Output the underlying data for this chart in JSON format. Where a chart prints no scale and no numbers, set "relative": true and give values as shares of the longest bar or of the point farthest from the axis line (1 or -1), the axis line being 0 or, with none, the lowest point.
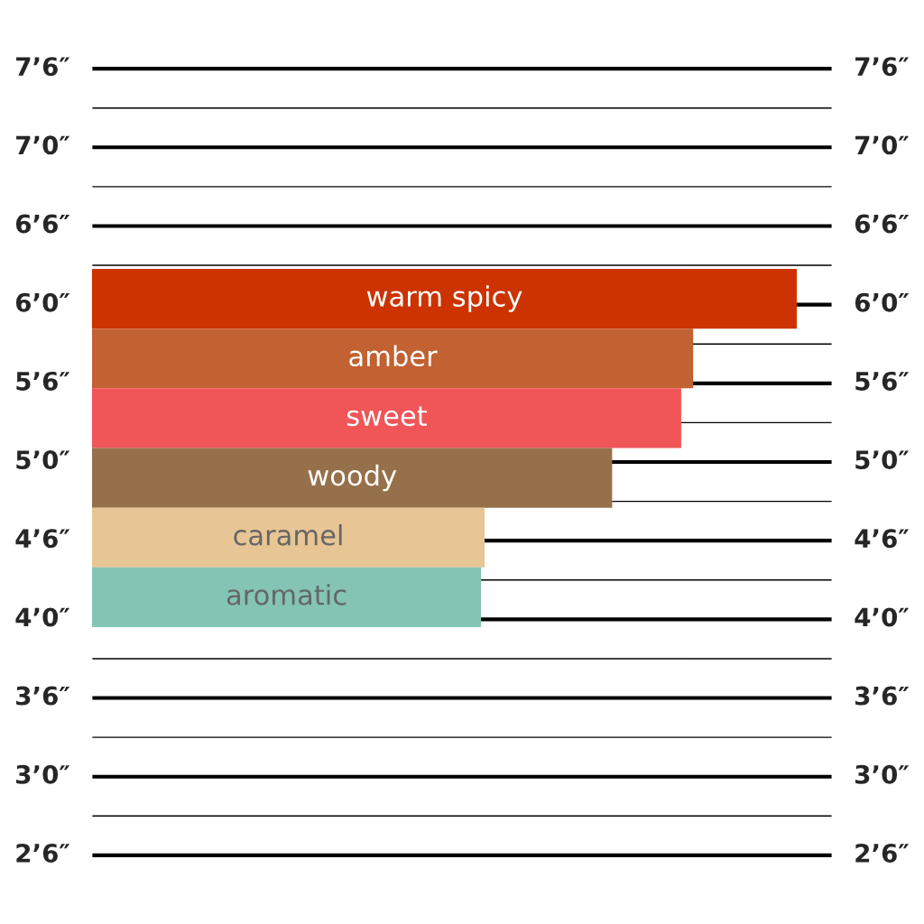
{
  "chart_data": [
    {
      "type": "other",
      "annotations": [
        "7’6″",
        "7’0″",
        "6’6″",
        "6’0″",
        "5’6″",
        "5’0″",
        "4’6″",
        "4’0″",
        "3’6″",
        "3’0″",
        "2’6″"
      ]
    },
    {
      "type": "bar",
      "orientation": "horizontal",
      "relative": true,
      "categories": [
        "warm spicy",
        "amber",
        "sweet",
        "woody",
        "caramel",
        "aromatic"
      ],
      "values": [
        1,
        0.853,
        0.836,
        0.738,
        0.557,
        0.552
      ],
      "colors": [
        "#cc3300",
        "#c26131",
        "#f05558",
        "#96704a",
        "#e8c595",
        "#84c4b5"
      ]
    }
  ]
}
